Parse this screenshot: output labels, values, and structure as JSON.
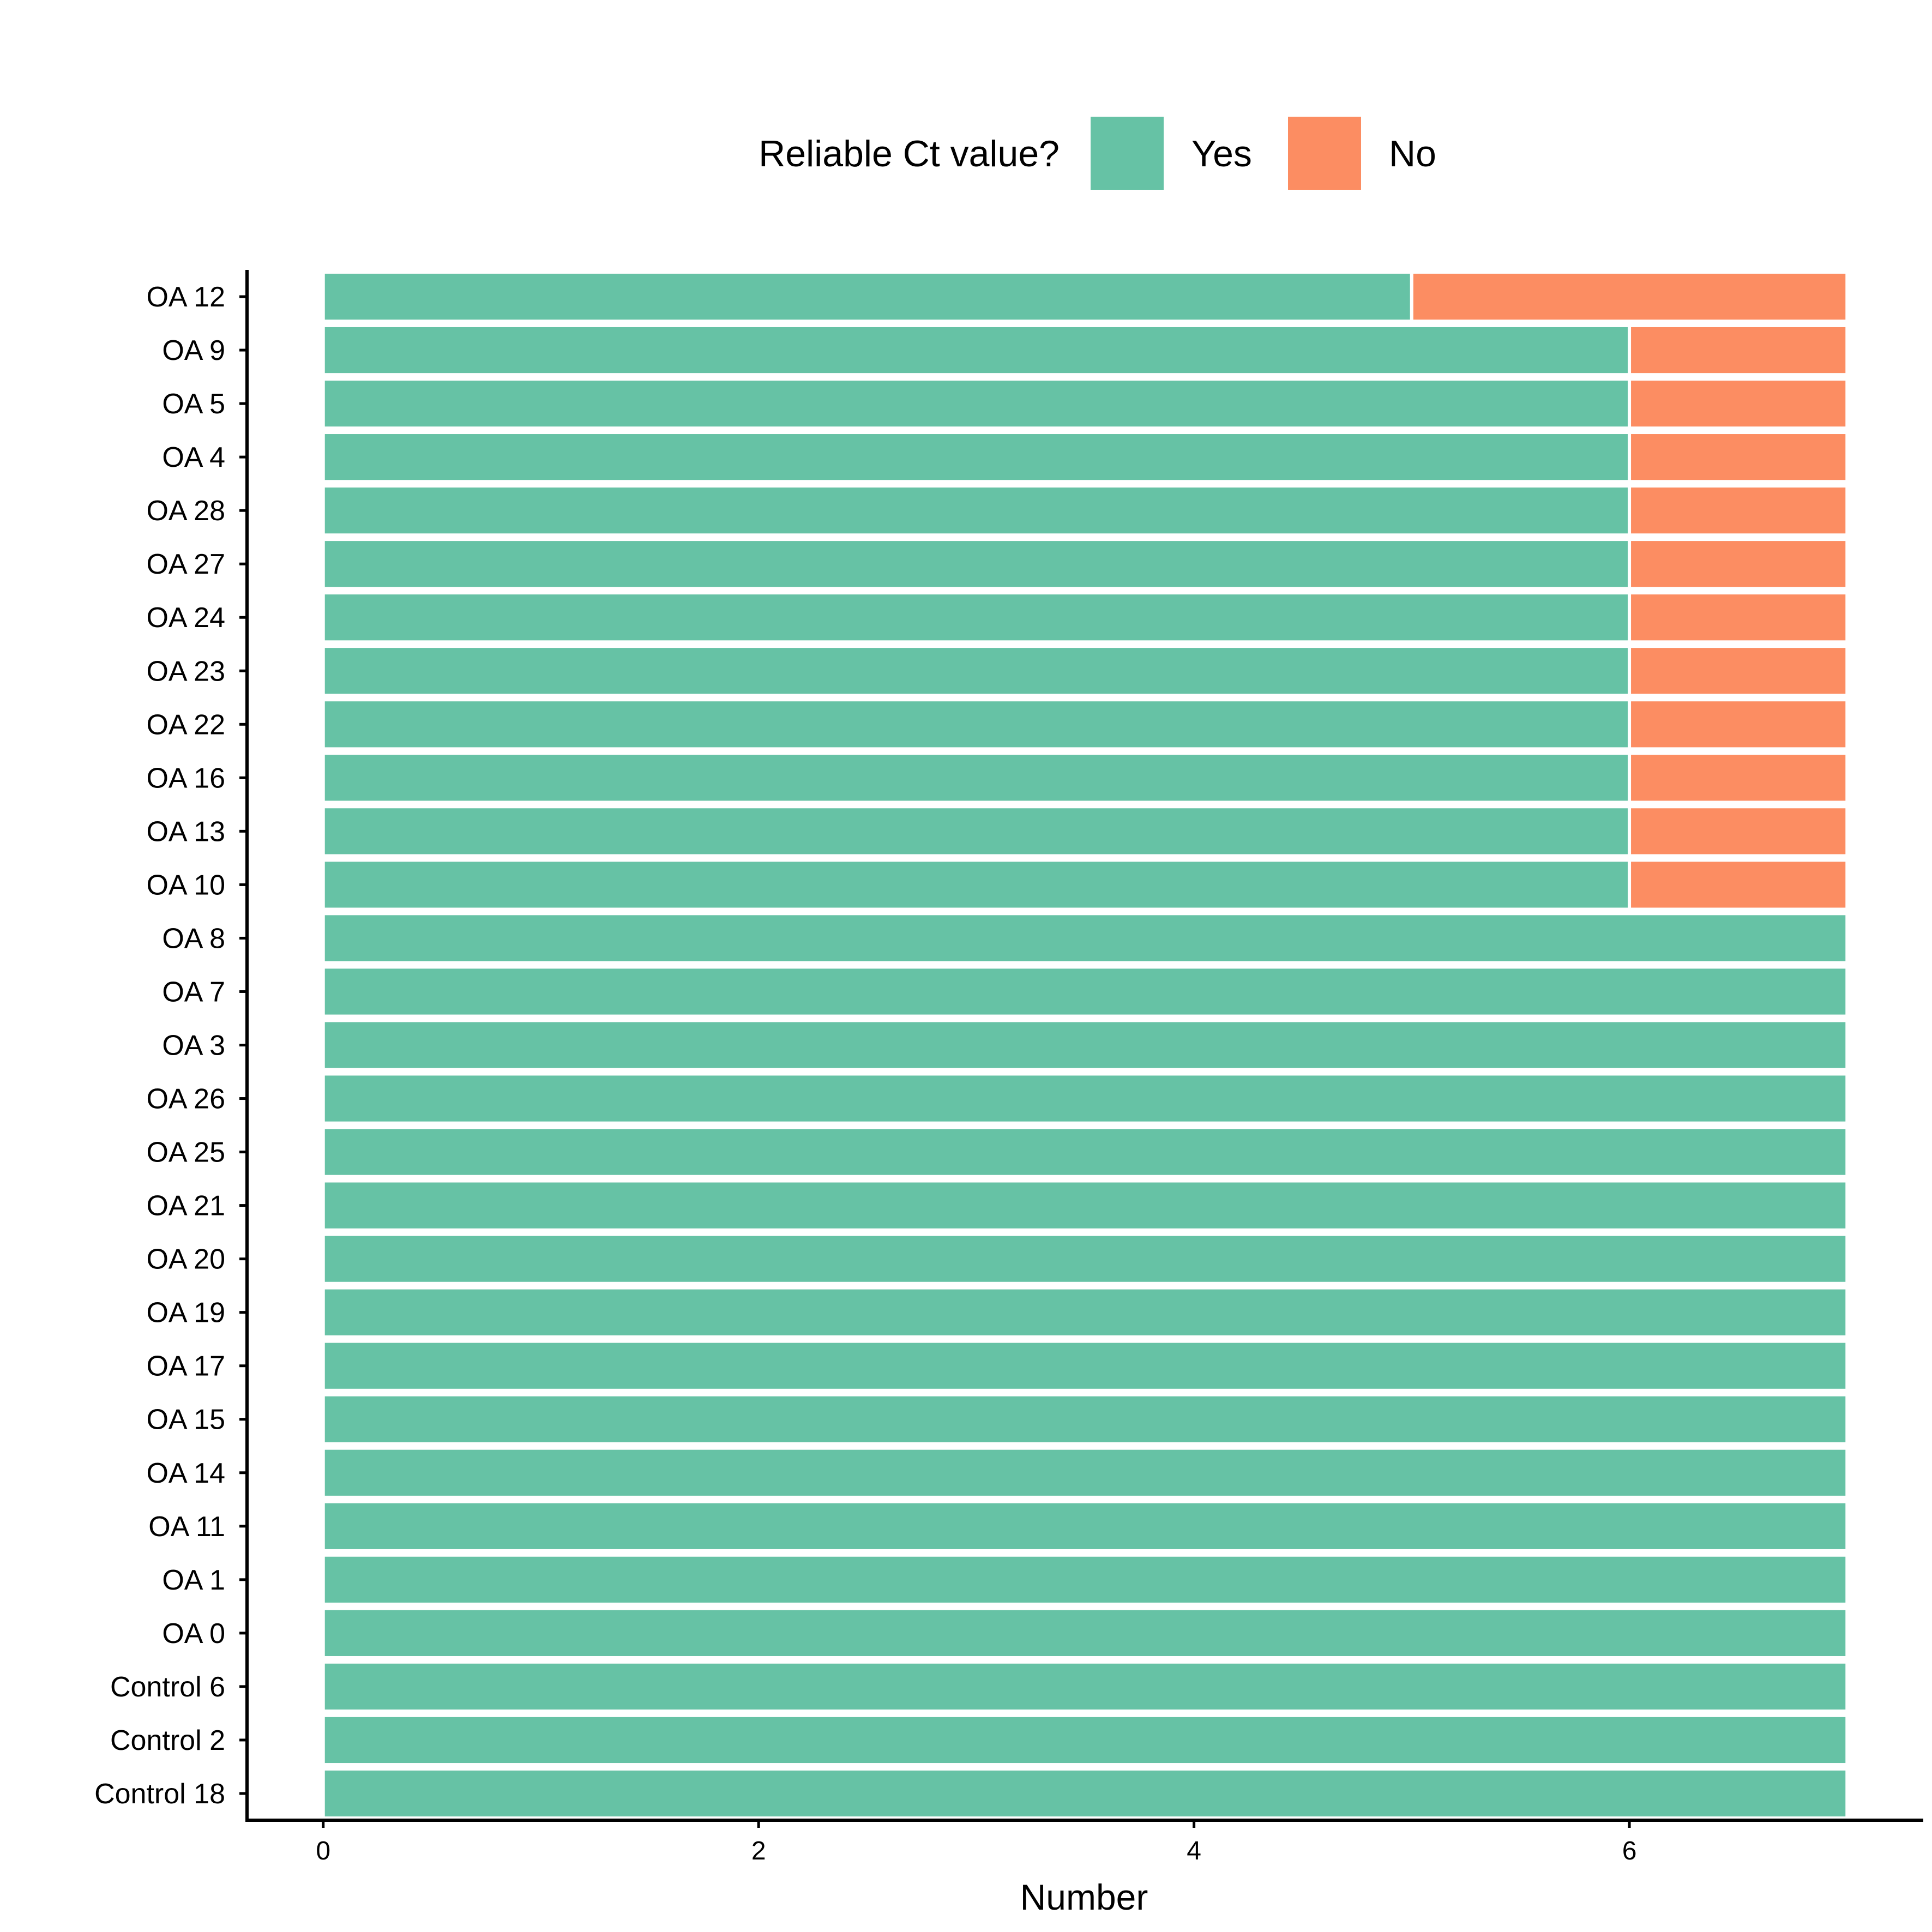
{
  "chart_data": {
    "type": "bar",
    "orientation": "horizontal",
    "stacked": true,
    "categories": [
      "OA 12",
      "OA 9",
      "OA 5",
      "OA 4",
      "OA 28",
      "OA 27",
      "OA 24",
      "OA 23",
      "OA 22",
      "OA 16",
      "OA 13",
      "OA 10",
      "OA 8",
      "OA 7",
      "OA 3",
      "OA 26",
      "OA 25",
      "OA 21",
      "OA 20",
      "OA 19",
      "OA 17",
      "OA 15",
      "OA 14",
      "OA 11",
      "OA 1",
      "OA 0",
      "Control 6",
      "Control 2",
      "Control 18"
    ],
    "series": [
      {
        "name": "Yes",
        "color": "#66c2a5",
        "values": [
          5,
          6,
          6,
          6,
          6,
          6,
          6,
          6,
          6,
          6,
          6,
          6,
          7,
          7,
          7,
          7,
          7,
          7,
          7,
          7,
          7,
          7,
          7,
          7,
          7,
          7,
          7,
          7,
          7
        ]
      },
      {
        "name": "No",
        "color": "#fc8d62",
        "values": [
          2,
          1,
          1,
          1,
          1,
          1,
          1,
          1,
          1,
          1,
          1,
          1,
          0,
          0,
          0,
          0,
          0,
          0,
          0,
          0,
          0,
          0,
          0,
          0,
          0,
          0,
          0,
          0,
          0
        ]
      }
    ],
    "xlabel": "Number",
    "ylabel": "",
    "xlim": [
      -0.35,
      7.35
    ],
    "xticks": [
      0,
      2,
      4,
      6
    ],
    "legend": {
      "title": "Reliable Ct value?",
      "position": "top"
    },
    "grid": false
  }
}
